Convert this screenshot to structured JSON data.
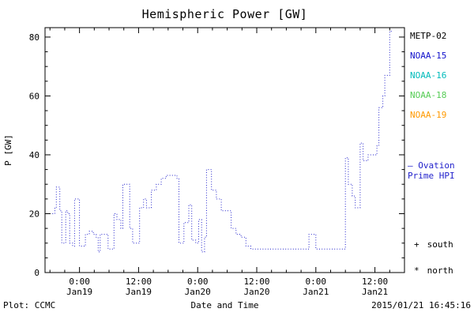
{
  "footer": {
    "plot_credit": "Plot: CCMC",
    "timestamp": "2015/01/21 16:45:16"
  },
  "legend": {
    "satellites": [
      {
        "label": "METP-02",
        "color": "#000000"
      },
      {
        "label": "NOAA-15",
        "color": "#1111cc"
      },
      {
        "label": "NOAA-16",
        "color": "#00bbbb"
      },
      {
        "label": "NOAA-18",
        "color": "#55cc55"
      },
      {
        "label": "NOAA-19",
        "color": "#ff9900"
      }
    ],
    "ovation": {
      "marker": "—",
      "line1": "Ovation",
      "line2": "Prime HPI",
      "color": "#2222cc"
    },
    "south": {
      "marker": "+",
      "label": "south",
      "color": "#000000"
    },
    "north": {
      "marker": "*",
      "label": "north",
      "color": "#000000"
    }
  },
  "chart_data": {
    "type": "line",
    "line_style": "dotted-step",
    "title": "Hemispheric Power [GW]",
    "xlabel": "Date and Time",
    "ylabel": "P [GW]",
    "x_unit": "hours since 2015-01-19 00:00 UT",
    "xlim": [
      -7,
      66
    ],
    "ylim": [
      0,
      83.2
    ],
    "grid": false,
    "legend_position": "right",
    "y_ticks": [
      0,
      20,
      40,
      60,
      80
    ],
    "x_ticks": [
      {
        "hour": 0,
        "time": "0:00",
        "date": "Jan19"
      },
      {
        "hour": 12,
        "time": "12:00",
        "date": "Jan19"
      },
      {
        "hour": 24,
        "time": "0:00",
        "date": "Jan20"
      },
      {
        "hour": 36,
        "time": "12:00",
        "date": "Jan20"
      },
      {
        "hour": 48,
        "time": "0:00",
        "date": "Jan21"
      },
      {
        "hour": 60,
        "time": "12:00",
        "date": "Jan21"
      }
    ],
    "line_color": "#2222cc",
    "points": [
      [
        -5.5,
        20
      ],
      [
        -5.0,
        22
      ],
      [
        -4.7,
        29
      ],
      [
        -4.2,
        29
      ],
      [
        -4.0,
        21
      ],
      [
        -3.6,
        10
      ],
      [
        -3.2,
        10
      ],
      [
        -2.8,
        21
      ],
      [
        -2.4,
        20
      ],
      [
        -2.0,
        10
      ],
      [
        -1.4,
        9
      ],
      [
        -1.0,
        25
      ],
      [
        -0.5,
        25
      ],
      [
        0.0,
        9
      ],
      [
        0.8,
        9
      ],
      [
        1.2,
        13
      ],
      [
        2.0,
        14
      ],
      [
        2.8,
        13
      ],
      [
        3.4,
        12
      ],
      [
        3.8,
        7
      ],
      [
        4.2,
        13
      ],
      [
        5.4,
        13
      ],
      [
        5.8,
        8
      ],
      [
        6.6,
        8
      ],
      [
        7.0,
        20
      ],
      [
        7.6,
        18
      ],
      [
        8.4,
        15
      ],
      [
        8.8,
        30
      ],
      [
        9.8,
        30
      ],
      [
        10.2,
        15
      ],
      [
        10.8,
        10
      ],
      [
        11.8,
        10
      ],
      [
        12.2,
        22
      ],
      [
        13.0,
        25
      ],
      [
        13.6,
        22
      ],
      [
        14.6,
        28
      ],
      [
        15.6,
        30
      ],
      [
        16.6,
        32
      ],
      [
        17.6,
        33
      ],
      [
        19.0,
        33
      ],
      [
        19.8,
        32
      ],
      [
        20.2,
        10
      ],
      [
        21.2,
        17
      ],
      [
        22.2,
        23
      ],
      [
        22.8,
        11
      ],
      [
        23.6,
        10
      ],
      [
        24.2,
        18
      ],
      [
        24.8,
        7
      ],
      [
        25.4,
        12
      ],
      [
        25.8,
        35
      ],
      [
        26.8,
        28
      ],
      [
        27.8,
        25
      ],
      [
        28.8,
        21
      ],
      [
        30.0,
        21
      ],
      [
        30.8,
        15
      ],
      [
        31.8,
        13
      ],
      [
        32.8,
        12
      ],
      [
        33.8,
        9
      ],
      [
        34.8,
        8
      ],
      [
        36.0,
        8
      ],
      [
        38.0,
        8
      ],
      [
        40.0,
        8
      ],
      [
        42.0,
        8
      ],
      [
        44.0,
        8
      ],
      [
        46.0,
        8
      ],
      [
        46.6,
        13
      ],
      [
        47.6,
        13
      ],
      [
        48.0,
        8
      ],
      [
        50.0,
        8
      ],
      [
        52.0,
        8
      ],
      [
        53.6,
        8
      ],
      [
        54.0,
        39
      ],
      [
        54.6,
        30
      ],
      [
        55.4,
        26
      ],
      [
        56.0,
        22
      ],
      [
        56.6,
        22
      ],
      [
        57.0,
        44
      ],
      [
        57.6,
        38
      ],
      [
        58.6,
        40
      ],
      [
        59.8,
        40
      ],
      [
        60.4,
        43
      ],
      [
        60.8,
        56
      ],
      [
        61.6,
        60
      ],
      [
        62.0,
        67
      ],
      [
        62.6,
        67
      ],
      [
        63.0,
        82
      ],
      [
        63.4,
        82
      ]
    ]
  }
}
